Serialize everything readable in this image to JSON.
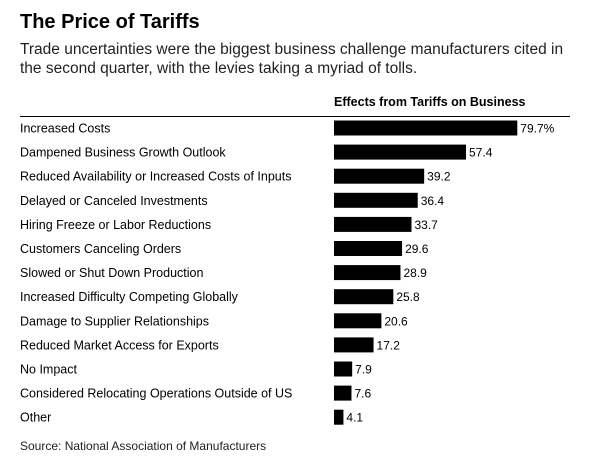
{
  "header": {
    "title": "The Price of Tariffs",
    "subtitle": "Trade uncertainties were the biggest business challenge manufacturers cited in the second quarter, with the levies taking a myriad of tolls."
  },
  "source": "Source: National Association of Manufacturers",
  "chart_data": {
    "type": "bar",
    "orientation": "horizontal",
    "title": "Effects from Tariffs on Business",
    "categories": [
      "Increased Costs",
      "Dampened Business Growth Outlook",
      "Reduced Availability or Increased Costs of Inputs",
      "Delayed or Canceled Investments",
      "Hiring Freeze or Labor Reductions",
      "Customers Canceling Orders",
      "Slowed or Shut Down Production",
      "Increased Difficulty Competing Globally",
      "Damage to Supplier Relationships",
      "Reduced Market Access for Exports",
      "No Impact",
      "Considered Relocating Operations Outside of US",
      "Other"
    ],
    "values": [
      79.7,
      57.4,
      39.2,
      36.4,
      33.7,
      29.6,
      28.9,
      25.8,
      20.6,
      17.2,
      7.9,
      7.6,
      4.1
    ],
    "value_labels": [
      "79.7%",
      "57.4",
      "39.2",
      "36.4",
      "33.7",
      "29.6",
      "28.9",
      "25.8",
      "20.6",
      "17.2",
      "7.9",
      "7.6",
      "4.1"
    ],
    "bar_color": "#000000",
    "xlim": [
      0,
      100
    ],
    "grid": false
  }
}
